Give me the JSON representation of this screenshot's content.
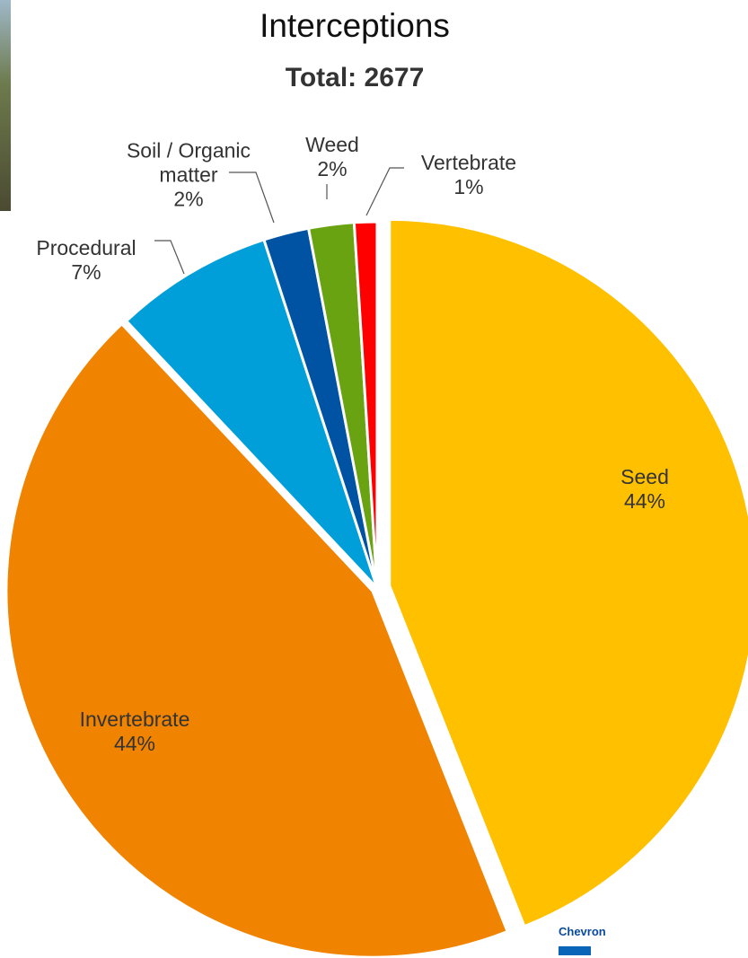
{
  "chart_data": {
    "type": "pie",
    "title": "Interceptions",
    "subtitle": "Total: 2677",
    "categories": [
      "Seed",
      "Invertebrate",
      "Procedural",
      "Soil / Organic matter",
      "Weed",
      "Vertebrate"
    ],
    "values": [
      44,
      44,
      7,
      2,
      2,
      1
    ],
    "value_labels": [
      "44%",
      "44%",
      "7%",
      "2%",
      "2%",
      "1%"
    ],
    "colors": [
      "#ffc000",
      "#f08300",
      "#009fd9",
      "#0052a3",
      "#6aa312",
      "#ff0000"
    ]
  },
  "logo_text": "Chevron"
}
